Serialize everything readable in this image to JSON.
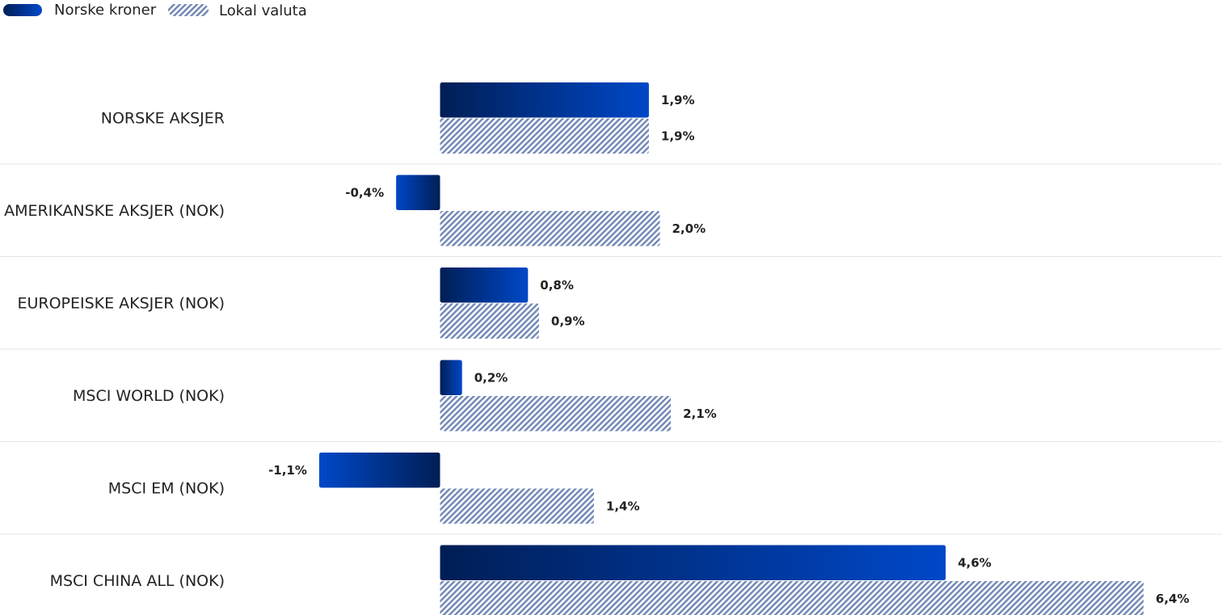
{
  "chart_data": {
    "type": "bar",
    "orientation": "horizontal",
    "categories": [
      "NORSKE AKSJER",
      "AMERIKANSKE AKSJER (NOK)",
      "EUROPEISKE AKSJER (NOK)",
      "MSCI WORLD (NOK)",
      "MSCI EM (NOK)",
      "MSCI CHINA ALL (NOK)"
    ],
    "series": [
      {
        "name": "Norske kroner",
        "values": [
          1.9,
          -0.4,
          0.8,
          0.2,
          -1.1,
          4.6
        ],
        "labels": [
          "1,9%",
          "-0,4%",
          "0,8%",
          "0,2%",
          "-1,1%",
          "4,6%"
        ],
        "fill": "gradient",
        "colors": [
          "#001e55",
          "#0048c8"
        ]
      },
      {
        "name": "Lokal valuta",
        "values": [
          1.9,
          2.0,
          0.9,
          2.1,
          1.4,
          6.4
        ],
        "labels": [
          "1,9%",
          "2,0%",
          "0,9%",
          "2,1%",
          "1,4%",
          "6,4%"
        ],
        "fill": "hatched",
        "colors": [
          "#6f86b4",
          "#ffffff"
        ]
      }
    ],
    "legend_position": "top-left",
    "grid": false
  }
}
